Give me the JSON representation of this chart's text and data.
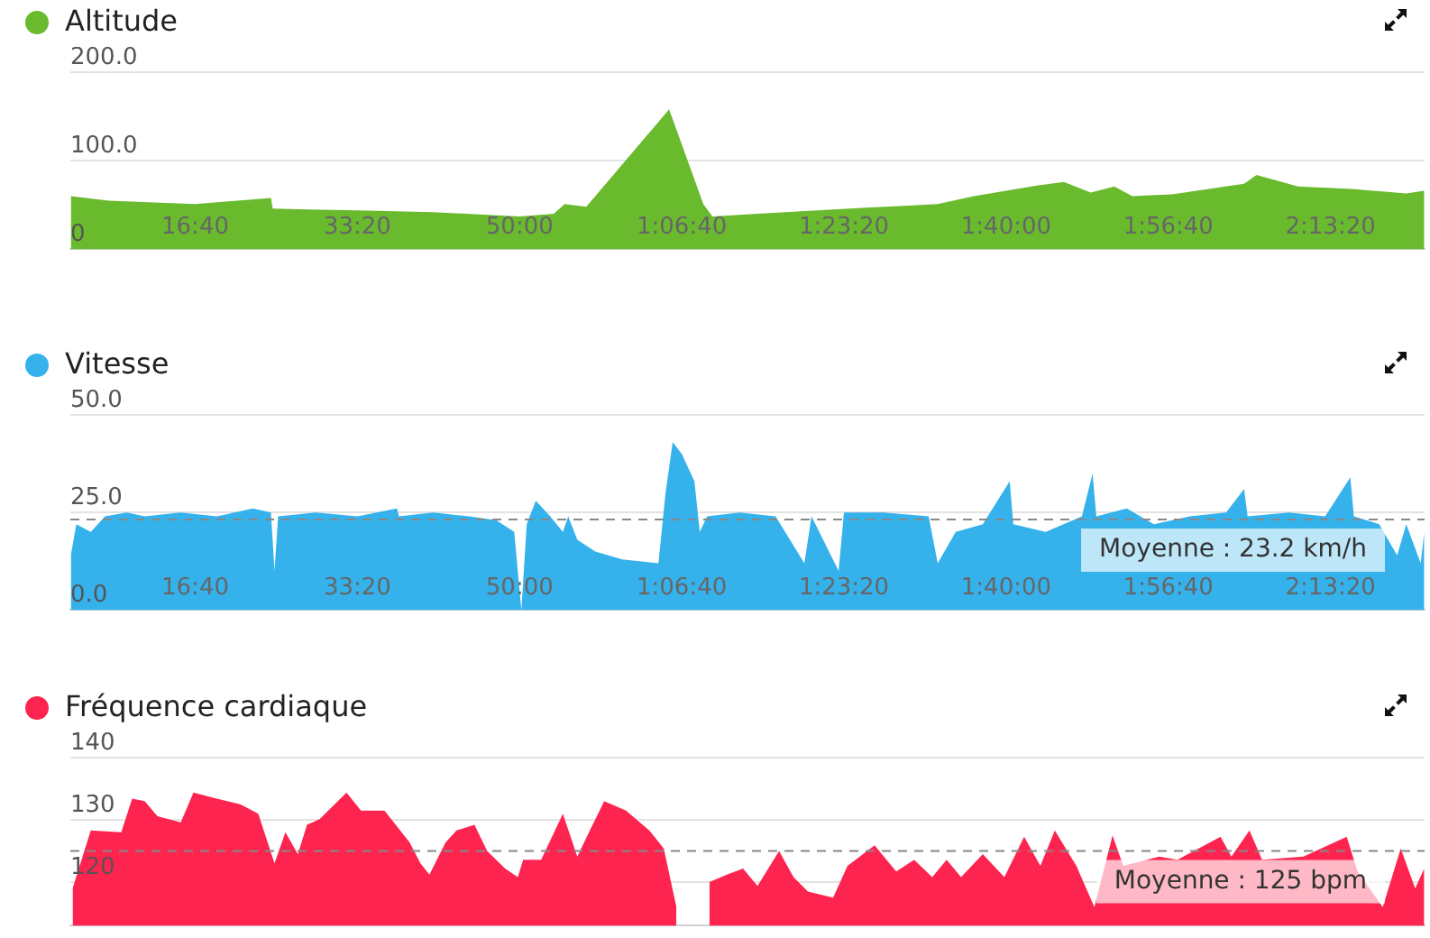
{
  "chart_data": [
    {
      "type": "area",
      "title": "Altitude",
      "series": [
        {
          "color": "#6aba2e",
          "x": [
            233,
            467,
            1000,
            1467,
            1478,
            1700,
            2000,
            2467,
            3000,
            3211,
            3278,
            3411,
            3922,
            4133,
            4189,
            4467,
            5133,
            5578,
            5800,
            6189,
            6356,
            6522,
            6667,
            6778,
            7022,
            7467,
            7544,
            7800,
            8133,
            8467,
            8578
          ],
          "values": [
            60,
            55,
            51,
            58,
            46,
            45,
            44,
            42,
            37,
            40,
            51,
            48,
            158,
            51,
            37,
            40,
            47,
            51,
            60,
            72,
            76,
            64,
            71,
            60,
            62,
            74,
            84,
            71,
            68,
            63,
            66
          ]
        }
      ],
      "xlim": [
        230,
        8580
      ],
      "xticks": [
        {
          "value": 1000,
          "label": "16:40"
        },
        {
          "value": 2000,
          "label": "33:20"
        },
        {
          "value": 3000,
          "label": "50:00"
        },
        {
          "value": 4000,
          "label": "1:06:40"
        },
        {
          "value": 5000,
          "label": "1:23:20"
        },
        {
          "value": 6000,
          "label": "1:40:00"
        },
        {
          "value": 7000,
          "label": "1:56:40"
        },
        {
          "value": 8000,
          "label": "2:13:20"
        }
      ],
      "ylim": [
        0,
        200
      ],
      "yticks": [
        {
          "value": 0,
          "label": "0"
        },
        {
          "value": 100,
          "label": "100.0"
        },
        {
          "value": 200,
          "label": "200.0"
        }
      ],
      "grid": "y"
    },
    {
      "type": "area",
      "title": "Vitesse",
      "series": [
        {
          "color": "#35b1ec",
          "x": [
            233,
            267,
            356,
            444,
            578,
            689,
            911,
            1133,
            1356,
            1467,
            1489,
            1511,
            1744,
            2000,
            2244,
            2256,
            2467,
            2689,
            2856,
            2967,
            3011,
            3044,
            3100,
            3189,
            3267,
            3300,
            3356,
            3467,
            3633,
            3856,
            3900,
            3944,
            4000,
            4078,
            4111,
            4156,
            4356,
            4578,
            4756,
            4800,
            4967,
            5000,
            5244,
            5522,
            5578,
            5689,
            5856,
            6022,
            6044,
            6244,
            6467,
            6533,
            6556,
            6744,
            6911,
            7133,
            7356,
            7467,
            7489,
            7744,
            7967,
            8122,
            8144,
            8300,
            8411,
            8467,
            8556,
            8578
          ],
          "values": [
            14,
            22,
            20,
            24,
            25,
            24,
            25,
            24,
            26,
            25,
            10,
            24,
            25,
            24,
            26,
            24,
            25,
            24,
            23,
            20,
            0,
            22,
            28,
            24,
            20,
            24,
            18,
            15,
            13,
            12,
            30,
            43,
            40,
            33,
            20,
            24,
            25,
            24,
            12,
            24,
            10,
            25,
            25,
            24,
            12,
            20,
            22,
            33,
            22,
            20,
            24,
            35,
            24,
            26,
            22,
            24,
            25,
            31,
            24,
            25,
            24,
            34,
            24,
            22,
            14,
            22,
            12,
            20
          ]
        }
      ],
      "xlim": [
        230,
        8580
      ],
      "xticks": [
        {
          "value": 1000,
          "label": "16:40"
        },
        {
          "value": 2000,
          "label": "33:20"
        },
        {
          "value": 3000,
          "label": "50:00"
        },
        {
          "value": 4000,
          "label": "1:06:40"
        },
        {
          "value": 5000,
          "label": "1:23:20"
        },
        {
          "value": 6000,
          "label": "1:40:00"
        },
        {
          "value": 7000,
          "label": "1:56:40"
        },
        {
          "value": 8000,
          "label": "2:13:20"
        }
      ],
      "ylim": [
        0,
        50
      ],
      "yticks": [
        {
          "value": 0,
          "label": "0.0"
        },
        {
          "value": 25,
          "label": "25.0"
        },
        {
          "value": 50,
          "label": "50.0"
        }
      ],
      "grid": "y",
      "ref_lines": [
        {
          "axis": "y",
          "value": 23.2,
          "label": "Moyenne : 23.2 km/h",
          "color": "#888888",
          "line_style": "dashed"
        }
      ]
    },
    {
      "type": "area",
      "title": "Fréquence cardiaque",
      "series": [
        {
          "color": "#fe2450",
          "x": [
            244,
            356,
            544,
            611,
            689,
            767,
            911,
            989,
            1133,
            1278,
            1389,
            1489,
            1556,
            1633,
            1689,
            1767,
            1933,
            2022,
            2167,
            2322,
            2389,
            2444,
            2544,
            2611,
            2722,
            2800,
            2911,
            2989,
            3022,
            3133,
            3267,
            3356,
            3433,
            3522,
            3656,
            3800,
            3889,
            3967,
            4020,
            4110,
            4170,
            4278,
            4378,
            4467,
            4600,
            4689,
            4778,
            4933,
            5022,
            5189,
            5322,
            5433,
            5544,
            5633,
            5722,
            5856,
            5989,
            6111,
            6211,
            6300,
            6433,
            6544,
            6656,
            6722,
            6944,
            7056,
            7322,
            7389,
            7500,
            7578,
            7833,
            8100,
            8167,
            8322,
            8433,
            8522,
            8578
          ],
          "values": [
            119,
            128.3,
            128,
            133.4,
            133,
            130.6,
            129.6,
            134.4,
            133.4,
            132.5,
            131,
            123,
            128,
            124.5,
            129.2,
            130.1,
            134.4,
            131.5,
            131.5,
            126.4,
            123,
            121.2,
            126.4,
            128.3,
            129.2,
            125,
            122.2,
            120.8,
            123.6,
            123.6,
            131,
            124.1,
            128.3,
            133,
            131.5,
            128.3,
            125.4,
            116,
            null,
            null,
            120,
            121.2,
            122.2,
            119.4,
            125,
            120.8,
            118.5,
            117.5,
            122.6,
            125.9,
            121.7,
            123.6,
            120.8,
            123.6,
            120.8,
            124.5,
            120.8,
            127.3,
            122.6,
            128.3,
            122.6,
            116,
            127.5,
            122.6,
            124.1,
            123.6,
            127.3,
            124.1,
            128.3,
            123.6,
            124.1,
            127.3,
            121.7,
            116,
            125.4,
            119,
            122.2
          ]
        }
      ],
      "xlim": [
        230,
        8580
      ],
      "ylim": [
        113,
        140
      ],
      "yticks": [
        120,
        130,
        140
      ],
      "grid": "y",
      "tick_labels": "y",
      "ref_lines": [
        {
          "axis": "y",
          "value": 125,
          "label": "Moyenne : 125 bpm",
          "color": "#888888",
          "line_style": "dashed"
        }
      ]
    }
  ]
}
